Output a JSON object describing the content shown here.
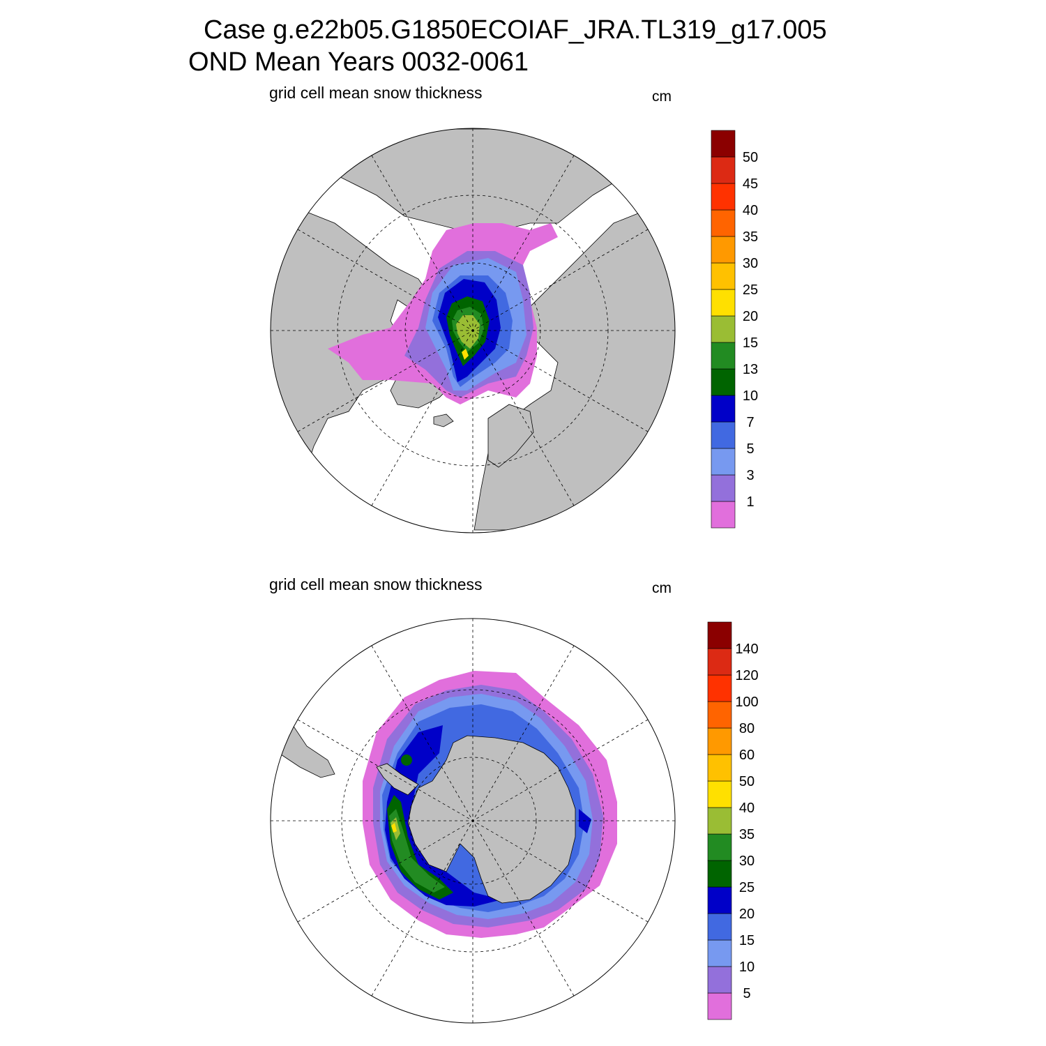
{
  "title": {
    "line1": "Case g.e22b05.G1850ECOIAF_JRA.TL319_g17.005",
    "line2": "OND Mean   Years 0032-0061"
  },
  "colors": {
    "land": "#bfbfbf",
    "palette": [
      "#e16fdc",
      "#9370db",
      "#7799f0",
      "#4169e1",
      "#0000c8",
      "#006400",
      "#228b22",
      "#9abd34",
      "#ffe000",
      "#ffc100",
      "#ff9900",
      "#ff6400",
      "#ff3200",
      "#dc2a14",
      "#8b0000"
    ]
  },
  "panels": [
    {
      "id": "nh",
      "hemisphere": "Northern Hemisphere",
      "subtitle": "grid cell mean snow thickness",
      "units": "cm",
      "colorbar": {
        "labels": [
          "1",
          "3",
          "5",
          "7",
          "10",
          "13",
          "15",
          "20",
          "25",
          "30",
          "35",
          "40",
          "45",
          "50"
        ]
      }
    },
    {
      "id": "sh",
      "hemisphere": "Southern Hemisphere",
      "subtitle": "grid cell mean snow thickness",
      "units": "cm",
      "colorbar": {
        "labels": [
          "5",
          "10",
          "15",
          "20",
          "25",
          "30",
          "35",
          "40",
          "50",
          "60",
          "80",
          "100",
          "120",
          "140"
        ]
      }
    }
  ]
}
